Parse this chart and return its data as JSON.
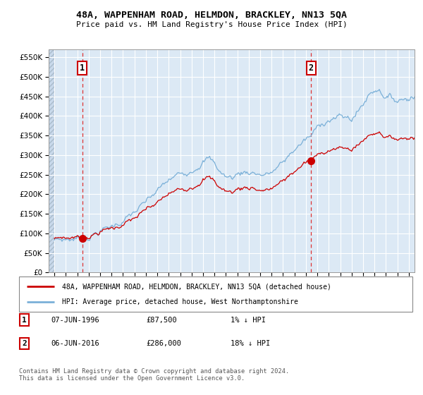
{
  "title": "48A, WAPPENHAM ROAD, HELMDON, BRACKLEY, NN13 5QA",
  "subtitle": "Price paid vs. HM Land Registry's House Price Index (HPI)",
  "legend_line1": "48A, WAPPENHAM ROAD, HELMDON, BRACKLEY, NN13 5QA (detached house)",
  "legend_line2": "HPI: Average price, detached house, West Northamptonshire",
  "annotation1_date": "07-JUN-1996",
  "annotation1_price": "£87,500",
  "annotation1_hpi": "1% ↓ HPI",
  "annotation2_date": "06-JUN-2016",
  "annotation2_price": "£286,000",
  "annotation2_hpi": "18% ↓ HPI",
  "footer": "Contains HM Land Registry data © Crown copyright and database right 2024.\nThis data is licensed under the Open Government Licence v3.0.",
  "sale1_year": 1996.44,
  "sale1_price": 87500,
  "sale2_year": 2016.44,
  "sale2_price": 286000,
  "hpi_color": "#7ab0d8",
  "price_paid_color": "#cc0000",
  "dashed_line_color": "#dd3333",
  "dot_color": "#cc0000",
  "plot_bg": "#dce9f5",
  "grid_color": "#ffffff",
  "ylim": [
    0,
    570000
  ],
  "xlim_start": 1993.5,
  "xlim_end": 2025.5,
  "yticks": [
    0,
    50000,
    100000,
    150000,
    200000,
    250000,
    300000,
    350000,
    400000,
    450000,
    500000,
    550000
  ],
  "hpi_anchors_x": [
    1994.0,
    1995.0,
    1996.0,
    1996.5,
    1997.0,
    1998.0,
    1999.0,
    2000.0,
    2001.0,
    2002.0,
    2003.0,
    2004.0,
    2005.0,
    2005.5,
    2006.0,
    2007.0,
    2007.5,
    2008.0,
    2008.5,
    2009.0,
    2009.5,
    2010.0,
    2010.5,
    2011.0,
    2011.5,
    2012.0,
    2012.5,
    2013.0,
    2013.5,
    2014.0,
    2014.5,
    2015.0,
    2015.5,
    2016.0,
    2016.44,
    2016.5,
    2017.0,
    2017.5,
    2018.0,
    2018.5,
    2019.0,
    2019.5,
    2020.0,
    2020.5,
    2021.0,
    2021.5,
    2022.0,
    2022.3,
    2022.7,
    2023.0,
    2023.5,
    2024.0,
    2024.5,
    2025.0,
    2025.5
  ],
  "hpi_anchors_y": [
    83000,
    85000,
    87000,
    88500,
    92000,
    106000,
    118000,
    132000,
    153000,
    178000,
    208000,
    235000,
    252000,
    258000,
    265000,
    285000,
    292000,
    278000,
    258000,
    245000,
    242000,
    252000,
    257000,
    258000,
    256000,
    252000,
    250000,
    256000,
    267000,
    280000,
    298000,
    315000,
    328000,
    340000,
    347000,
    350000,
    370000,
    385000,
    393000,
    395000,
    397000,
    395000,
    393000,
    410000,
    430000,
    455000,
    468000,
    472000,
    460000,
    450000,
    445000,
    440000,
    445000,
    448000,
    452000
  ]
}
